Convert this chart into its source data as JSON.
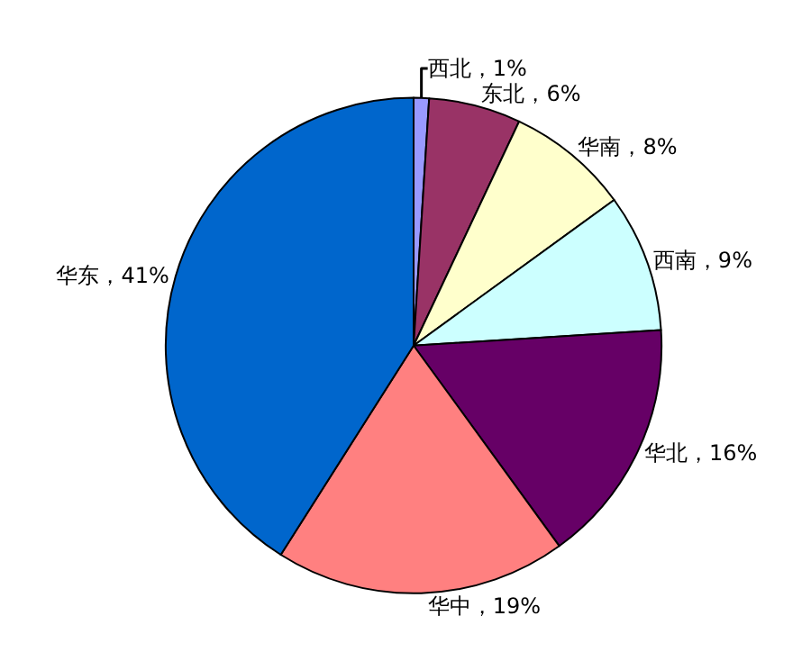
{
  "chart_data": {
    "type": "pie",
    "categories": [
      "西北",
      "东北",
      "华南",
      "西南",
      "华北",
      "华中",
      "华东"
    ],
    "values": [
      1,
      6,
      8,
      9,
      16,
      19,
      41
    ],
    "colors": [
      "#9999ff",
      "#993366",
      "#ffffcc",
      "#ccffff",
      "#660066",
      "#ff8080",
      "#0066cc"
    ],
    "value_labels": [
      "，1%",
      "，6%",
      "，8%",
      "，9%",
      "，16%",
      "，19%",
      "，41%"
    ],
    "legend": false
  }
}
